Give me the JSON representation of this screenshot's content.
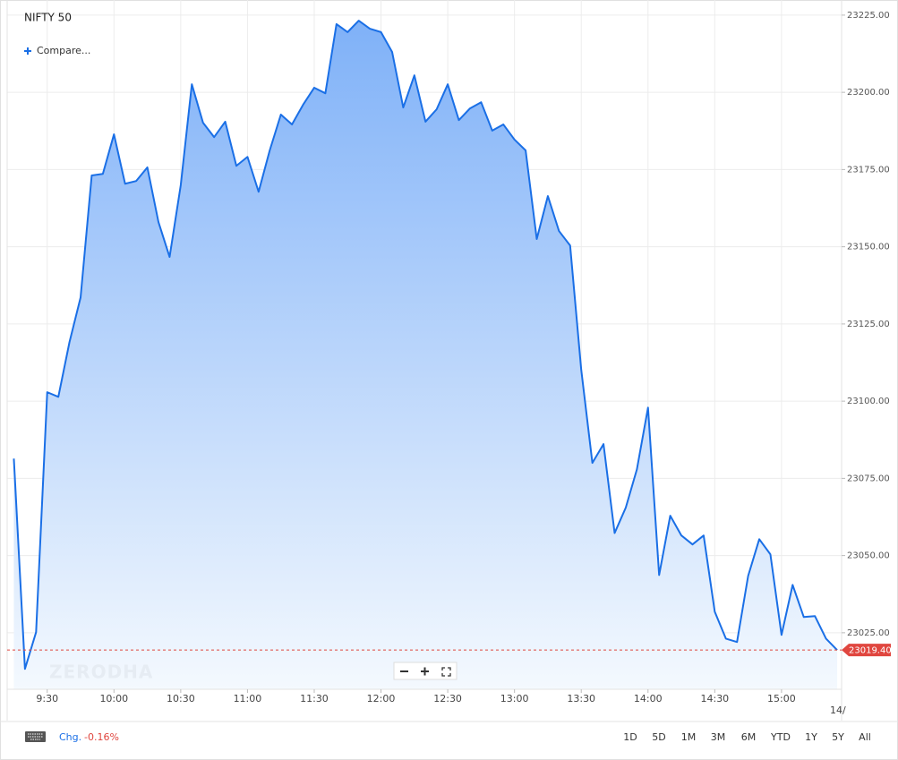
{
  "chart_data": {
    "type": "area",
    "title": "NIFTY 50",
    "compare_label": "Compare...",
    "watermark": "ZERODHA",
    "change_label": "Chg.",
    "change": "-0.16%",
    "ranges": [
      "1D",
      "5D",
      "1M",
      "3M",
      "6M",
      "YTD",
      "1Y",
      "5Y",
      "All"
    ],
    "date_label": "14/",
    "x": [
      "9:15",
      "9:20",
      "9:25",
      "9:30",
      "9:35",
      "9:40",
      "9:45",
      "9:50",
      "9:55",
      "10:00",
      "10:05",
      "10:10",
      "10:15",
      "10:20",
      "10:25",
      "10:30",
      "10:35",
      "10:40",
      "10:45",
      "10:50",
      "10:55",
      "11:00",
      "11:05",
      "11:10",
      "11:15",
      "11:20",
      "11:25",
      "11:30",
      "11:35",
      "11:40",
      "11:45",
      "11:50",
      "11:55",
      "12:00",
      "12:05",
      "12:10",
      "12:15",
      "12:20",
      "12:25",
      "12:30",
      "12:35",
      "12:40",
      "12:45",
      "12:50",
      "12:55",
      "13:00",
      "13:05",
      "13:10",
      "13:15",
      "13:20",
      "13:25",
      "13:30",
      "13:35",
      "13:40",
      "13:45",
      "13:50",
      "13:55",
      "14:00",
      "14:05",
      "14:10",
      "14:15",
      "14:20",
      "14:25",
      "14:30",
      "14:35",
      "14:40",
      "14:45",
      "14:50",
      "14:55",
      "15:00",
      "15:05",
      "15:10",
      "15:15",
      "15:20",
      "15:25"
    ],
    "series": [
      {
        "name": "NIFTY 50",
        "color": "#1a6fe6",
        "values": [
          23081.4,
          23013.3,
          23025.2,
          23102.9,
          23101.4,
          23119.1,
          23133.6,
          23173.1,
          23173.6,
          23186.4,
          23170.4,
          23171.3,
          23175.7,
          23158.0,
          23146.7,
          23169.9,
          23202.6,
          23190.2,
          23185.5,
          23190.5,
          23176.2,
          23179.1,
          23167.8,
          23181.2,
          23192.8,
          23189.6,
          23196.0,
          23201.5,
          23199.7,
          23222.1,
          23219.5,
          23223.2,
          23220.6,
          23219.5,
          23213.1,
          23195.1,
          23205.5,
          23190.5,
          23194.5,
          23202.6,
          23191.0,
          23194.8,
          23196.8,
          23187.6,
          23189.6,
          23184.7,
          23181.2,
          23152.5,
          23166.4,
          23155.1,
          23150.4,
          23110.1,
          23080.0,
          23086.1,
          23057.3,
          23065.5,
          23077.9,
          23097.9,
          23043.7,
          23062.9,
          23056.5,
          23053.6,
          23056.5,
          23031.8,
          23023.1,
          23022.0,
          23043.4,
          23055.3,
          23050.4,
          23024.3,
          23040.5,
          23030.1,
          23030.4,
          23023.1,
          23019.4
        ]
      }
    ],
    "current": {
      "value": 23019.4,
      "label": "23019.40"
    },
    "xlim": [
      "9:12",
      "15:27"
    ],
    "xticks": [
      "9:30",
      "10:00",
      "10:30",
      "11:00",
      "11:30",
      "12:00",
      "12:30",
      "13:00",
      "13:30",
      "14:00",
      "14:30",
      "15:00"
    ],
    "ylim": [
      23006.7,
      23229.9
    ],
    "yticks": [
      {
        "value": 23025,
        "label": "23025.00"
      },
      {
        "value": 23050,
        "label": "23050.00"
      },
      {
        "value": 23075,
        "label": "23075.00"
      },
      {
        "value": 23100,
        "label": "23100.00"
      },
      {
        "value": 23125,
        "label": "23125.00"
      },
      {
        "value": 23150,
        "label": "23150.00"
      },
      {
        "value": 23175,
        "label": "23175.00"
      },
      {
        "value": 23200,
        "label": "23200.00"
      },
      {
        "value": 23225,
        "label": "23225.00"
      }
    ],
    "grid": true
  }
}
